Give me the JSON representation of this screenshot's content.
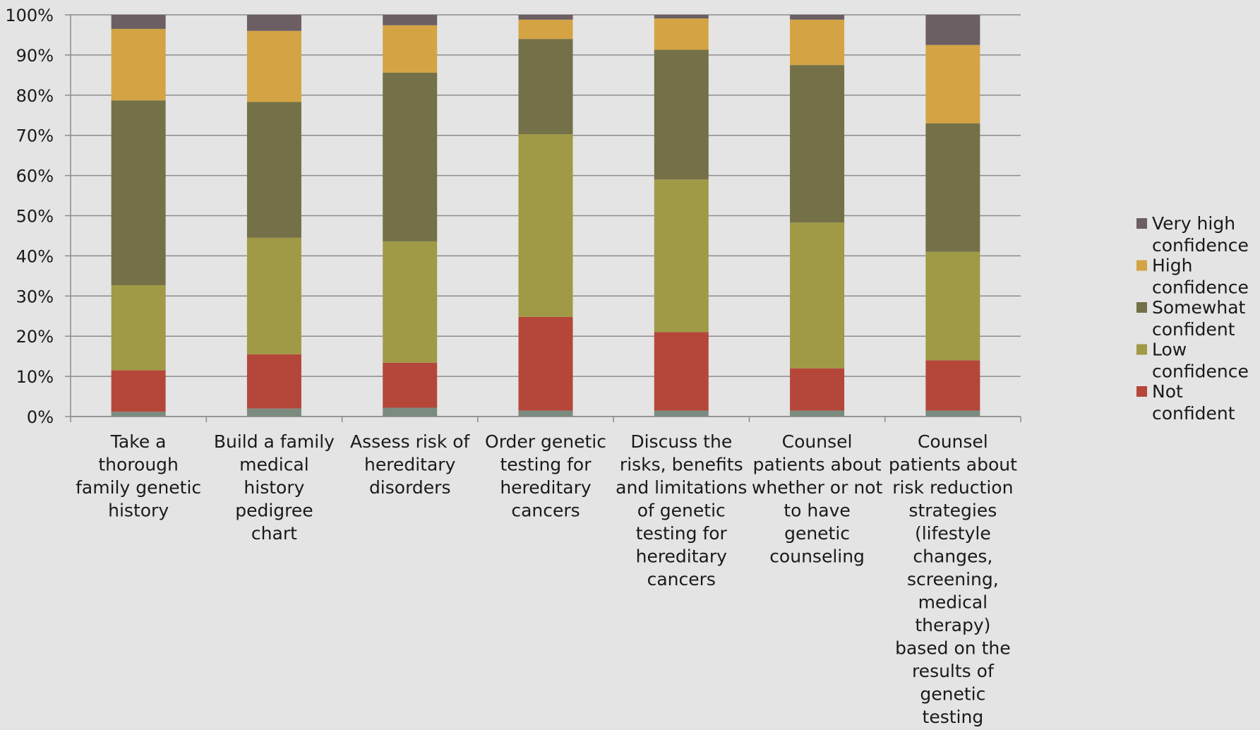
{
  "chart_data": {
    "type": "bar",
    "stacked": true,
    "percent": true,
    "title": "",
    "xlabel": "",
    "ylabel": "",
    "ylim": [
      0,
      100
    ],
    "yticks": [
      "0%",
      "10%",
      "20%",
      "30%",
      "40%",
      "50%",
      "60%",
      "70%",
      "80%",
      "90%",
      "100%"
    ],
    "grid": true,
    "legend_position": "right",
    "categories": [
      "Take a thorough family genetic history",
      "Build a family medical history pedigree chart",
      "Assess risk of hereditary disorders",
      "Order genetic testing for hereditary cancers",
      "Discuss the risks, benefits and limitations of genetic testing for hereditary cancers",
      "Counsel patients about whether or not to have genetic counseling",
      "Counsel patients about risk reduction strategies (lifestyle changes, screening, medical therapy) based on the results of genetic testing"
    ],
    "category_label_lines": [
      [
        "Take a",
        "thorough",
        "family genetic",
        "history"
      ],
      [
        "Build a family",
        "medical",
        "history",
        "pedigree",
        "chart"
      ],
      [
        "Assess risk of",
        "hereditary",
        "disorders"
      ],
      [
        "Order genetic",
        "testing for",
        "hereditary",
        "cancers"
      ],
      [
        "Discuss the",
        "risks, benefits",
        "and limitations",
        "of genetic",
        "testing for",
        "hereditary",
        "cancers"
      ],
      [
        "Counsel",
        "patients about",
        "whether or not",
        "to have",
        "genetic",
        "counseling"
      ],
      [
        "Counsel",
        "patients about",
        "risk reduction",
        "strategies",
        "(lifestyle",
        "changes,",
        "screening,",
        "medical",
        "therapy)",
        "based on the",
        "results of",
        "genetic",
        "testing"
      ]
    ],
    "series": [
      {
        "name": "",
        "color": "#7b8b7f",
        "values": [
          1.2,
          2.0,
          2.2,
          1.5,
          1.5,
          1.5,
          1.5
        ]
      },
      {
        "name": "Not confident",
        "color": "#b5473a",
        "values": [
          10.3,
          13.5,
          11.2,
          23.3,
          19.5,
          10.5,
          12.5
        ]
      },
      {
        "name": "Low confidence",
        "color": "#a09a47",
        "values": [
          21.2,
          29.0,
          30.2,
          45.5,
          38.0,
          36.3,
          27.0
        ]
      },
      {
        "name": "Somewhat confident",
        "color": "#747148",
        "values": [
          46.0,
          33.8,
          42.0,
          23.7,
          32.3,
          39.2,
          32.0
        ]
      },
      {
        "name": "High confidence",
        "color": "#d4a444",
        "values": [
          17.8,
          17.7,
          11.8,
          4.8,
          7.8,
          11.3,
          19.5
        ]
      },
      {
        "name": "Very high confidence",
        "color": "#6b5f63",
        "values": [
          3.5,
          4.0,
          2.6,
          1.2,
          0.9,
          1.2,
          7.5
        ]
      }
    ],
    "legend_entries": [
      {
        "label_lines": [
          "Very high",
          "confidence"
        ],
        "color": "#6b5f63"
      },
      {
        "label_lines": [
          "High",
          "confidence"
        ],
        "color": "#d4a444"
      },
      {
        "label_lines": [
          "Somewhat",
          "confident"
        ],
        "color": "#747148"
      },
      {
        "label_lines": [
          "Low",
          "confidence"
        ],
        "color": "#a09a47"
      },
      {
        "label_lines": [
          "Not",
          "confident"
        ],
        "color": "#b5473a"
      }
    ],
    "colors": {
      "background": "#e4e4e4",
      "grid": "#8c8c8c",
      "axis": "#8c8c8c",
      "text": "#1a1a1a"
    }
  }
}
